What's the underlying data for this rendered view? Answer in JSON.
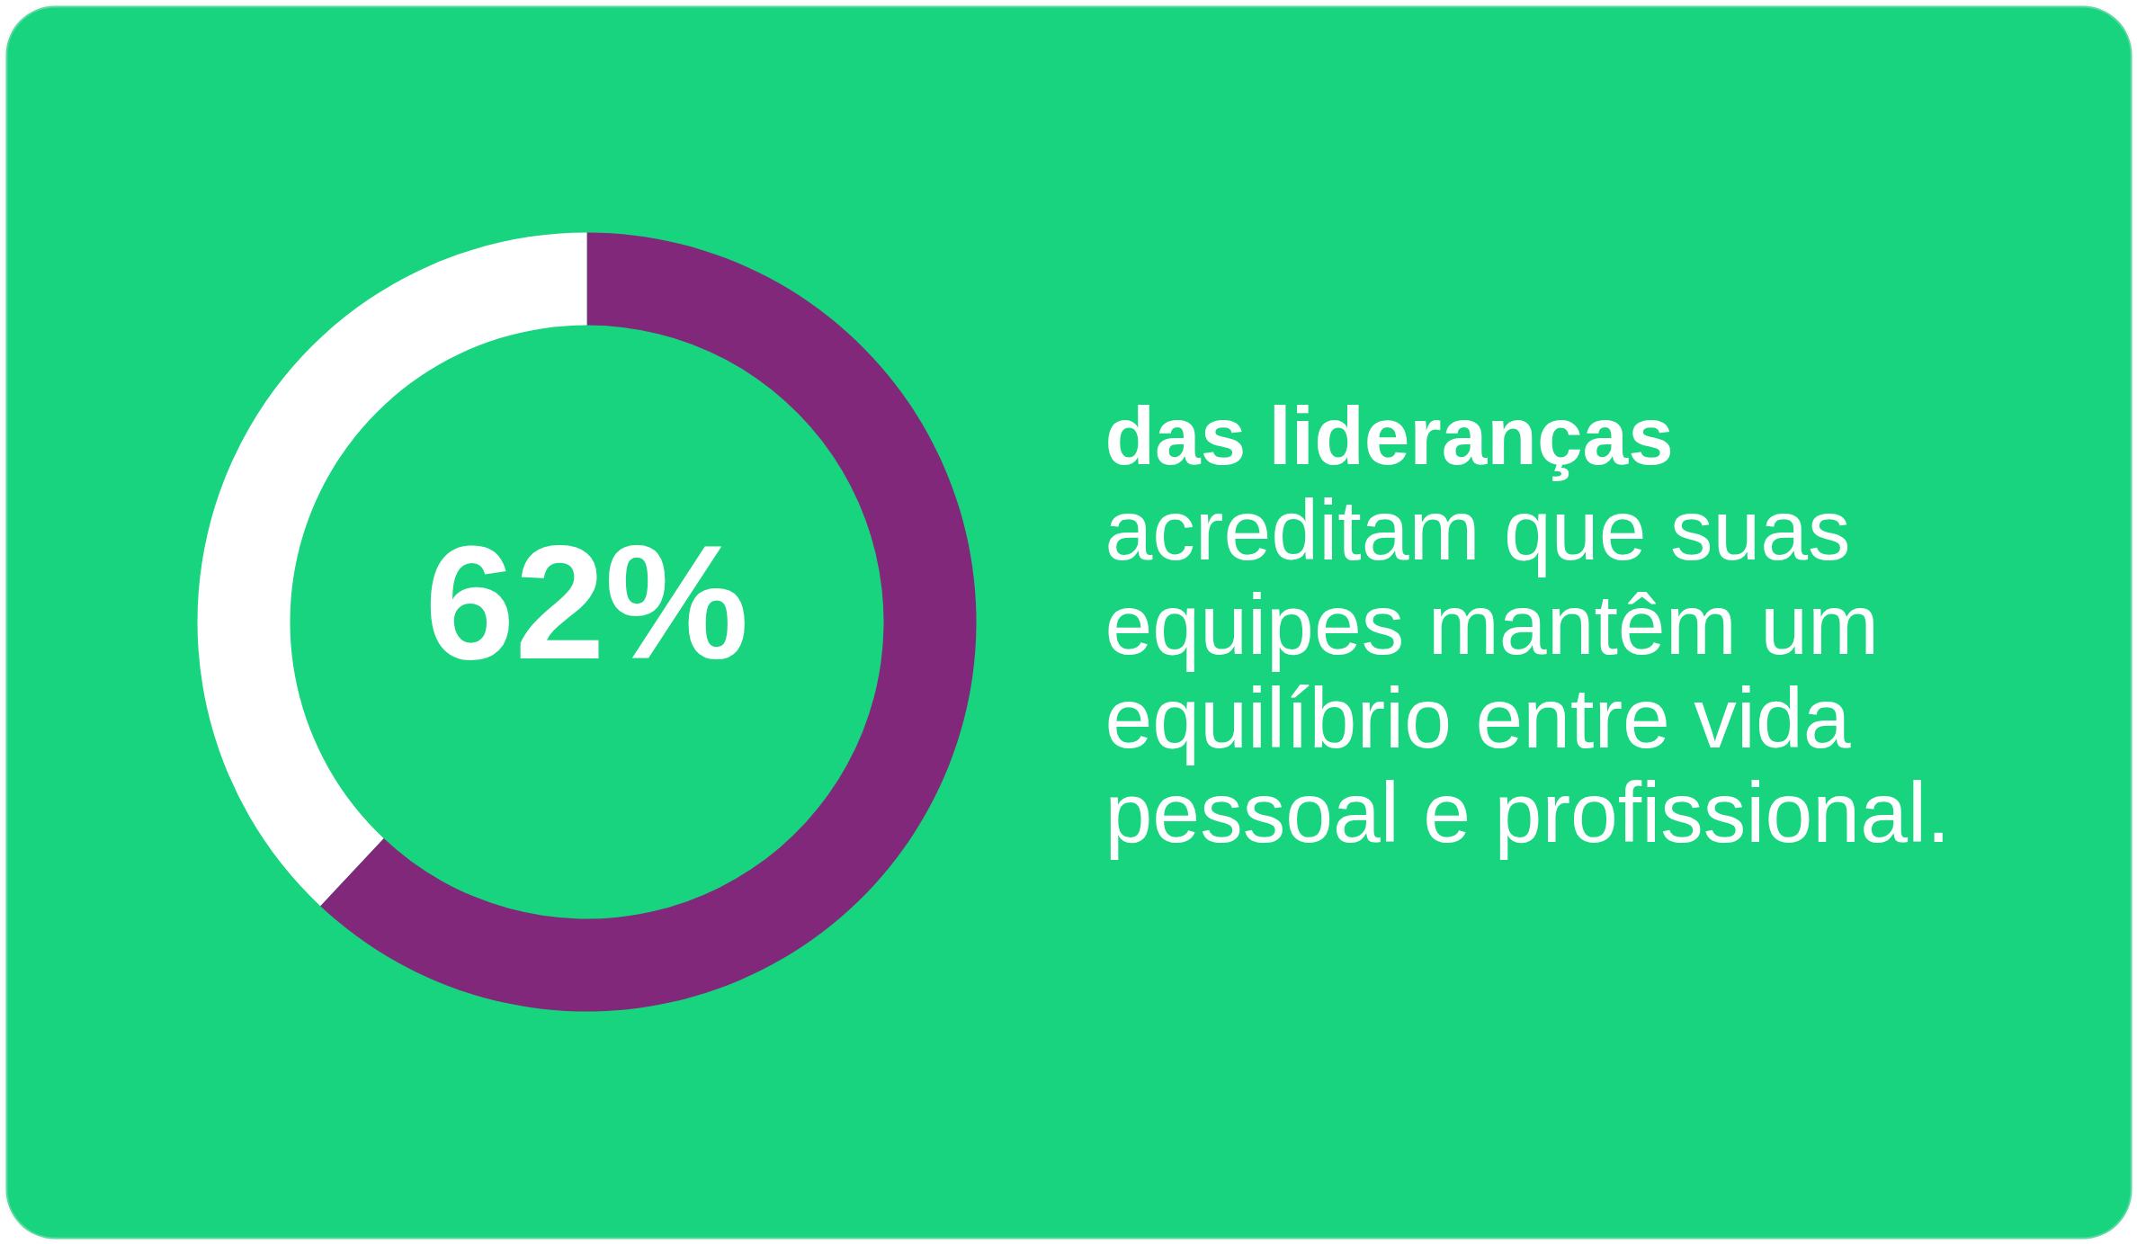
{
  "chart_data": {
    "type": "donut",
    "title": "das lideranças",
    "subtitle": "acreditam que suas equipes mantêm um equilíbrio entre vida pessoal e profissional.",
    "categories": [
      null,
      null
    ],
    "values": [
      62,
      38
    ],
    "colors": [
      "#81287b",
      "#ffffff"
    ],
    "value_labels": [
      "62%",
      null
    ]
  }
}
